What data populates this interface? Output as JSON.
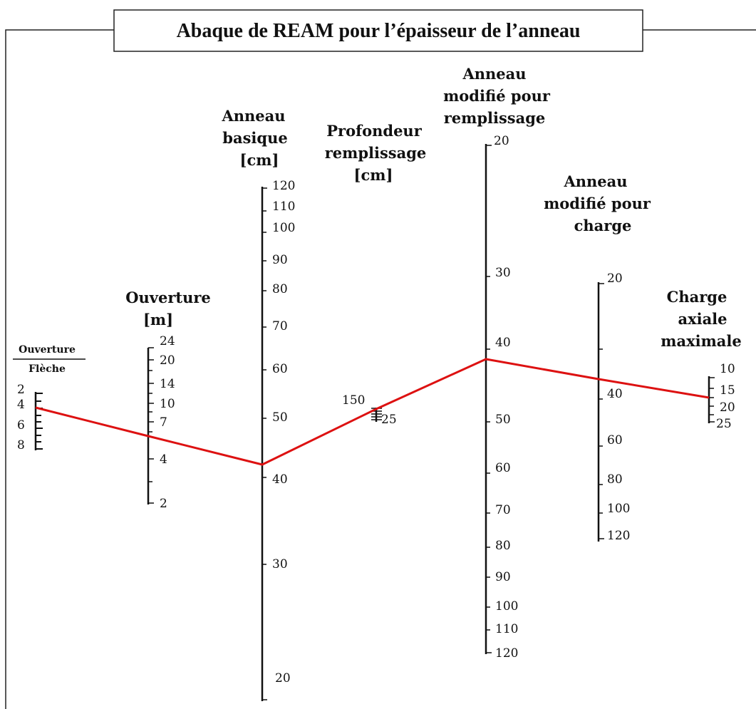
{
  "title": "Abaque de REAM pour l’épaisseur de l’anneau",
  "colors": {
    "solution_line": "#dd1111",
    "ink": "#111111"
  },
  "ratio": {
    "header_top": "Ouverture",
    "header_bottom": "Flèche",
    "ticks": [
      "2",
      "4",
      "6",
      "8"
    ]
  },
  "ouverture": {
    "header": [
      "Ouverture",
      "[m]"
    ],
    "ticks": [
      "24",
      "20",
      "14",
      "10",
      "7",
      "4",
      "2"
    ]
  },
  "anneau_basique": {
    "header": [
      "Anneau",
      "basique",
      "[cm]"
    ],
    "ticks": [
      "120",
      "110",
      "100",
      "90",
      "80",
      "70",
      "60",
      "50",
      "40",
      "30",
      "20"
    ]
  },
  "profondeur": {
    "header": [
      "Profondeur",
      "remplissage",
      "[cm]"
    ],
    "ticks": [
      "150",
      "25"
    ]
  },
  "anneau_remplissage": {
    "header": [
      "Anneau",
      "modifié pour",
      "remplissage"
    ],
    "ticks": [
      "20",
      "30",
      "40",
      "50",
      "60",
      "70",
      "80",
      "90",
      "100",
      "110",
      "120"
    ]
  },
  "anneau_charge": {
    "header": [
      "Anneau",
      "modifié pour",
      "charge"
    ],
    "ticks": [
      "20",
      "40",
      "60",
      "80",
      "100",
      "120"
    ]
  },
  "charge_axiale": {
    "header": [
      "Charge",
      "axiale",
      "maximale"
    ],
    "ticks": [
      "10",
      "15",
      "20",
      "25"
    ]
  },
  "solution": {
    "ratio": "4",
    "ouverture": "6",
    "anneau_basique": "42",
    "profondeur": "150",
    "anneau_remplissage": "43",
    "anneau_charge": "40",
    "charge_axiale": "20"
  }
}
